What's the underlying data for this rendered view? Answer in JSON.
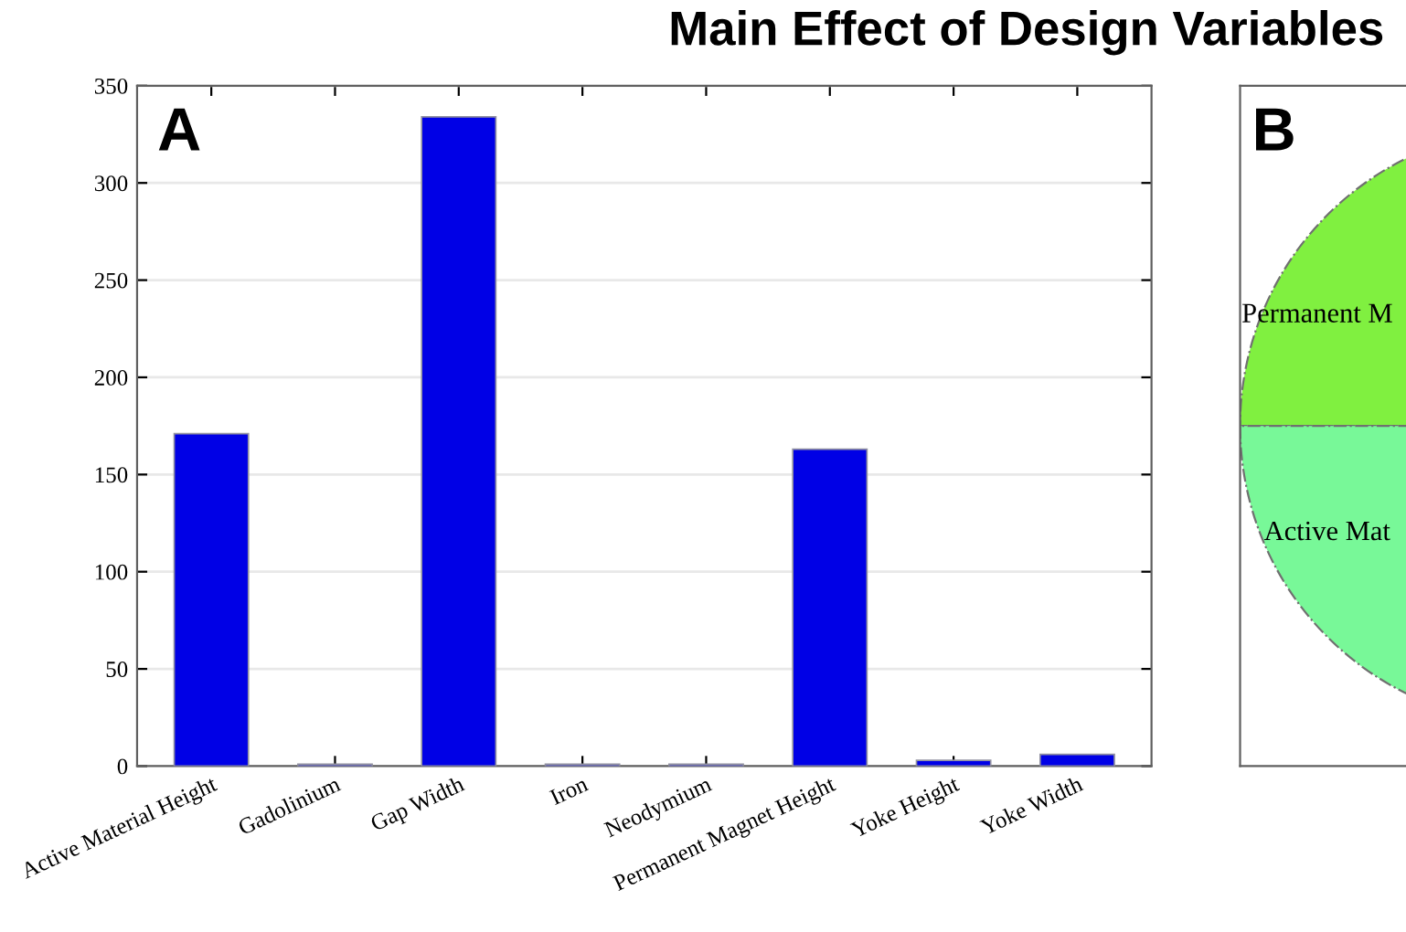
{
  "chart_data": [
    {
      "type": "bar",
      "title": "Main Effect of Design Variables",
      "annotations": [
        "A"
      ],
      "categories": [
        "Active Material Height",
        "Gadolinium",
        "Gap Width",
        "Iron",
        "Neodymium",
        "Permanent Magnet Height",
        "Yoke Height",
        "Yoke Width"
      ],
      "values": [
        171,
        1,
        334,
        1,
        1,
        163,
        3,
        6
      ],
      "color": "#0000e6",
      "ylim": [
        0,
        350
      ],
      "yticks": [
        0,
        50,
        100,
        150,
        200,
        250,
        300,
        350
      ],
      "grid": "y"
    },
    {
      "type": "other",
      "annotations": [
        "B",
        "Permanent M",
        "Active Mat"
      ]
    }
  ]
}
